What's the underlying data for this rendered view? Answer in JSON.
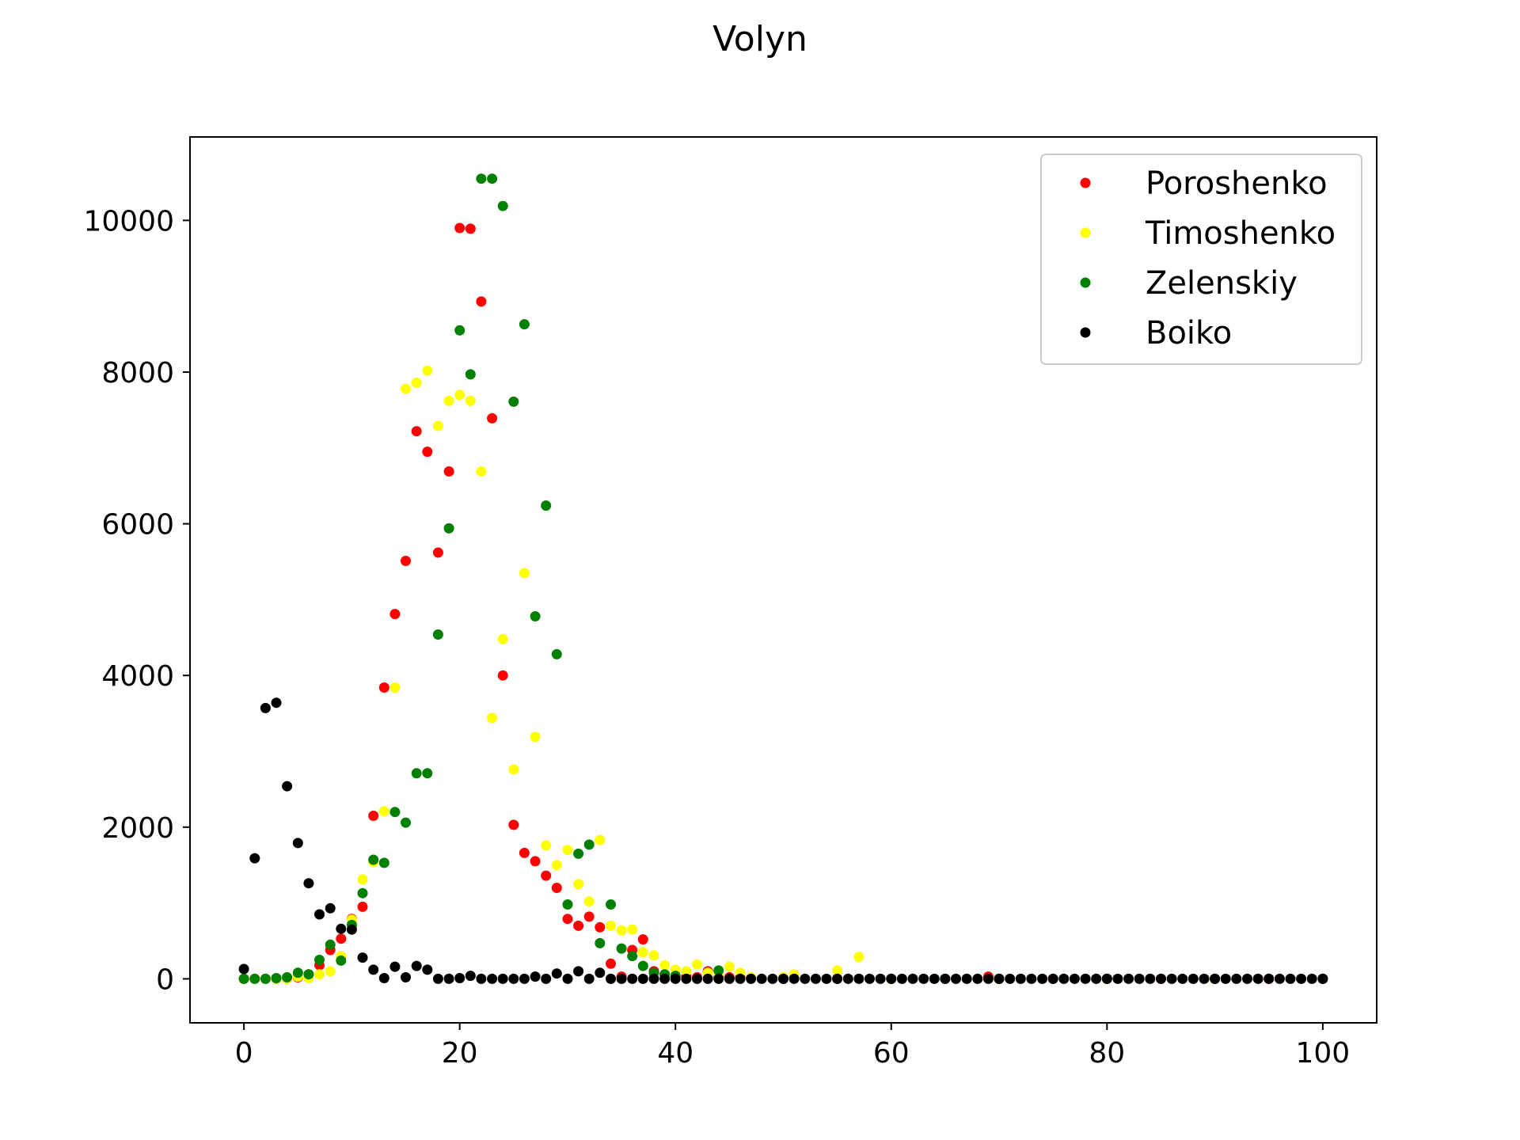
{
  "chart_data": {
    "type": "scatter",
    "title": "Volyn",
    "xlabel": "",
    "ylabel": "",
    "xlim": [
      -5,
      105
    ],
    "ylim": [
      -580,
      11100
    ],
    "x_ticks": [
      0,
      20,
      40,
      60,
      80,
      100
    ],
    "y_ticks": [
      0,
      2000,
      4000,
      6000,
      8000,
      10000
    ],
    "grid": false,
    "legend_position": "top-right",
    "series": [
      {
        "name": "Poroshenko",
        "color": "#ff0000",
        "points": [
          [
            0,
            0
          ],
          [
            1,
            0
          ],
          [
            2,
            0
          ],
          [
            3,
            0
          ],
          [
            4,
            0
          ],
          [
            5,
            20
          ],
          [
            6,
            60
          ],
          [
            7,
            180
          ],
          [
            8,
            380
          ],
          [
            9,
            530
          ],
          [
            10,
            790
          ],
          [
            11,
            950
          ],
          [
            12,
            2150
          ],
          [
            13,
            3840
          ],
          [
            14,
            4810
          ],
          [
            15,
            5510
          ],
          [
            16,
            7220
          ],
          [
            17,
            6950
          ],
          [
            18,
            5620
          ],
          [
            19,
            6690
          ],
          [
            20,
            9900
          ],
          [
            21,
            9890
          ],
          [
            22,
            8930
          ],
          [
            23,
            7390
          ],
          [
            24,
            4000
          ],
          [
            25,
            2030
          ],
          [
            26,
            1660
          ],
          [
            27,
            1550
          ],
          [
            28,
            1360
          ],
          [
            29,
            1200
          ],
          [
            30,
            790
          ],
          [
            31,
            700
          ],
          [
            32,
            820
          ],
          [
            33,
            680
          ],
          [
            34,
            200
          ],
          [
            35,
            30
          ],
          [
            36,
            380
          ],
          [
            37,
            520
          ],
          [
            38,
            100
          ],
          [
            39,
            60
          ],
          [
            40,
            30
          ],
          [
            41,
            30
          ],
          [
            42,
            20
          ],
          [
            43,
            100
          ],
          [
            44,
            30
          ],
          [
            45,
            20
          ],
          [
            46,
            20
          ],
          [
            50,
            0
          ],
          [
            55,
            0
          ],
          [
            60,
            0
          ],
          [
            65,
            0
          ],
          [
            69,
            30
          ],
          [
            70,
            0
          ],
          [
            75,
            0
          ],
          [
            80,
            0
          ],
          [
            85,
            0
          ],
          [
            90,
            0
          ],
          [
            95,
            0
          ],
          [
            100,
            0
          ]
        ]
      },
      {
        "name": "Timoshenko",
        "color": "#ffff00",
        "points": [
          [
            0,
            0
          ],
          [
            1,
            0
          ],
          [
            2,
            0
          ],
          [
            3,
            0
          ],
          [
            4,
            0
          ],
          [
            5,
            30
          ],
          [
            6,
            10
          ],
          [
            7,
            60
          ],
          [
            8,
            100
          ],
          [
            9,
            300
          ],
          [
            10,
            780
          ],
          [
            11,
            1310
          ],
          [
            12,
            1540
          ],
          [
            13,
            2210
          ],
          [
            14,
            3840
          ],
          [
            15,
            7780
          ],
          [
            16,
            7860
          ],
          [
            17,
            8020
          ],
          [
            18,
            7290
          ],
          [
            19,
            7620
          ],
          [
            20,
            7700
          ],
          [
            21,
            7620
          ],
          [
            22,
            6690
          ],
          [
            23,
            3440
          ],
          [
            24,
            4480
          ],
          [
            25,
            2760
          ],
          [
            26,
            5350
          ],
          [
            27,
            3190
          ],
          [
            28,
            1760
          ],
          [
            29,
            1500
          ],
          [
            30,
            1700
          ],
          [
            31,
            1250
          ],
          [
            32,
            1020
          ],
          [
            33,
            1830
          ],
          [
            34,
            700
          ],
          [
            35,
            640
          ],
          [
            36,
            650
          ],
          [
            37,
            350
          ],
          [
            38,
            310
          ],
          [
            39,
            180
          ],
          [
            40,
            120
          ],
          [
            41,
            100
          ],
          [
            42,
            190
          ],
          [
            43,
            80
          ],
          [
            44,
            60
          ],
          [
            45,
            160
          ],
          [
            46,
            80
          ],
          [
            47,
            20
          ],
          [
            50,
            20
          ],
          [
            51,
            60
          ],
          [
            55,
            110
          ],
          [
            57,
            290
          ],
          [
            60,
            0
          ],
          [
            70,
            0
          ],
          [
            80,
            0
          ],
          [
            90,
            0
          ],
          [
            100,
            0
          ]
        ]
      },
      {
        "name": "Zelenskiy",
        "color": "#008000",
        "points": [
          [
            0,
            0
          ],
          [
            1,
            0
          ],
          [
            2,
            0
          ],
          [
            3,
            10
          ],
          [
            4,
            20
          ],
          [
            5,
            80
          ],
          [
            6,
            60
          ],
          [
            7,
            250
          ],
          [
            8,
            450
          ],
          [
            9,
            240
          ],
          [
            10,
            710
          ],
          [
            11,
            1130
          ],
          [
            12,
            1570
          ],
          [
            13,
            1530
          ],
          [
            14,
            2200
          ],
          [
            15,
            2060
          ],
          [
            16,
            2710
          ],
          [
            17,
            2710
          ],
          [
            18,
            4540
          ],
          [
            19,
            5940
          ],
          [
            20,
            8550
          ],
          [
            21,
            7970
          ],
          [
            22,
            10550
          ],
          [
            23,
            10550
          ],
          [
            24,
            10190
          ],
          [
            25,
            7610
          ],
          [
            26,
            8630
          ],
          [
            27,
            4780
          ],
          [
            28,
            6240
          ],
          [
            29,
            4280
          ],
          [
            30,
            980
          ],
          [
            31,
            1650
          ],
          [
            32,
            1770
          ],
          [
            33,
            470
          ],
          [
            34,
            980
          ],
          [
            35,
            400
          ],
          [
            36,
            300
          ],
          [
            37,
            170
          ],
          [
            38,
            80
          ],
          [
            39,
            60
          ],
          [
            40,
            40
          ],
          [
            44,
            110
          ],
          [
            50,
            0
          ],
          [
            60,
            0
          ],
          [
            70,
            0
          ],
          [
            80,
            0
          ],
          [
            90,
            0
          ],
          [
            100,
            0
          ]
        ]
      },
      {
        "name": "Boiko",
        "color": "#000000",
        "points": [
          [
            0,
            130
          ],
          [
            1,
            1590
          ],
          [
            2,
            3570
          ],
          [
            3,
            3640
          ],
          [
            4,
            2540
          ],
          [
            5,
            1790
          ],
          [
            6,
            1260
          ],
          [
            7,
            850
          ],
          [
            8,
            930
          ],
          [
            9,
            660
          ],
          [
            10,
            650
          ],
          [
            11,
            280
          ],
          [
            12,
            120
          ],
          [
            13,
            10
          ],
          [
            14,
            160
          ],
          [
            15,
            20
          ],
          [
            16,
            170
          ],
          [
            17,
            120
          ],
          [
            18,
            0
          ],
          [
            19,
            0
          ],
          [
            20,
            10
          ],
          [
            21,
            40
          ],
          [
            22,
            0
          ],
          [
            23,
            0
          ],
          [
            24,
            0
          ],
          [
            25,
            0
          ],
          [
            26,
            0
          ],
          [
            27,
            30
          ],
          [
            28,
            0
          ],
          [
            29,
            70
          ],
          [
            30,
            0
          ],
          [
            31,
            100
          ],
          [
            32,
            0
          ],
          [
            33,
            80
          ],
          [
            34,
            0
          ],
          [
            35,
            0
          ],
          [
            36,
            0
          ],
          [
            37,
            0
          ],
          [
            38,
            0
          ],
          [
            39,
            0
          ],
          [
            40,
            0
          ],
          [
            41,
            0
          ],
          [
            42,
            0
          ],
          [
            43,
            0
          ],
          [
            44,
            0
          ],
          [
            45,
            0
          ],
          [
            46,
            0
          ],
          [
            47,
            0
          ],
          [
            48,
            0
          ],
          [
            49,
            0
          ],
          [
            50,
            0
          ],
          [
            51,
            0
          ],
          [
            52,
            0
          ],
          [
            53,
            0
          ],
          [
            54,
            0
          ],
          [
            55,
            0
          ],
          [
            56,
            0
          ],
          [
            57,
            0
          ],
          [
            58,
            0
          ],
          [
            59,
            0
          ],
          [
            60,
            0
          ],
          [
            61,
            0
          ],
          [
            62,
            0
          ],
          [
            63,
            0
          ],
          [
            64,
            0
          ],
          [
            65,
            0
          ],
          [
            66,
            0
          ],
          [
            67,
            0
          ],
          [
            68,
            0
          ],
          [
            69,
            0
          ],
          [
            70,
            0
          ],
          [
            71,
            0
          ],
          [
            72,
            0
          ],
          [
            73,
            0
          ],
          [
            74,
            0
          ],
          [
            75,
            0
          ],
          [
            76,
            0
          ],
          [
            77,
            0
          ],
          [
            78,
            0
          ],
          [
            79,
            0
          ],
          [
            80,
            0
          ],
          [
            81,
            0
          ],
          [
            82,
            0
          ],
          [
            83,
            0
          ],
          [
            84,
            0
          ],
          [
            85,
            0
          ],
          [
            86,
            0
          ],
          [
            87,
            0
          ],
          [
            88,
            0
          ],
          [
            89,
            0
          ],
          [
            90,
            0
          ],
          [
            91,
            0
          ],
          [
            92,
            0
          ],
          [
            93,
            0
          ],
          [
            94,
            0
          ],
          [
            95,
            0
          ],
          [
            96,
            0
          ],
          [
            97,
            0
          ],
          [
            98,
            0
          ],
          [
            99,
            0
          ],
          [
            100,
            0
          ]
        ]
      }
    ]
  }
}
